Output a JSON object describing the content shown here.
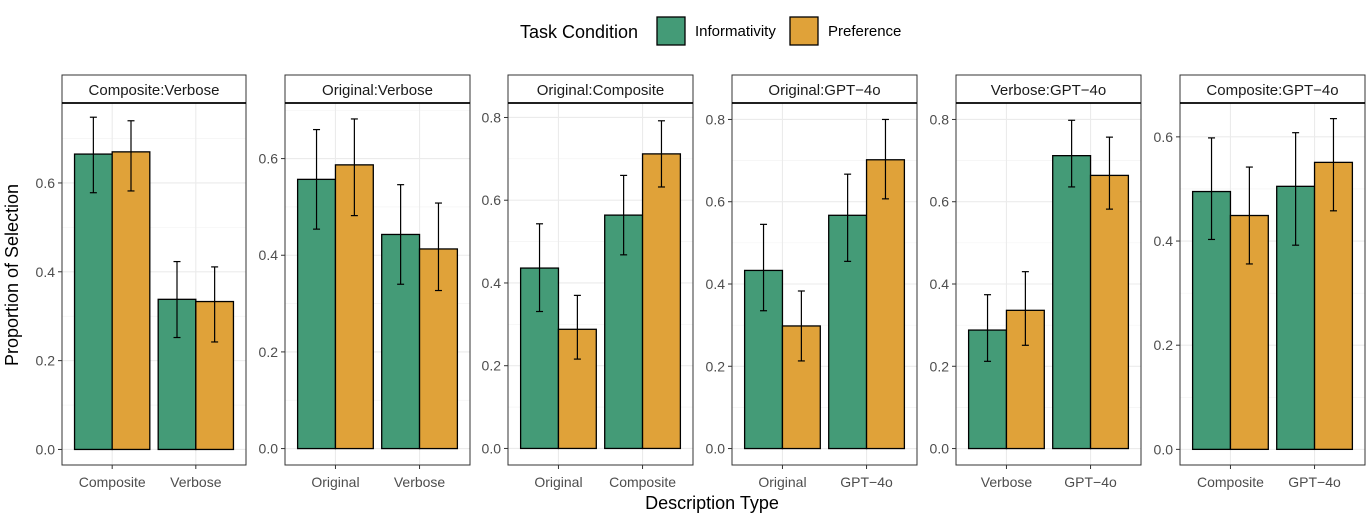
{
  "chart_data": {
    "type": "bar",
    "xlabel": "Description Type",
    "ylabel": "Proportion of Selection",
    "legend": {
      "title": "Task Condition",
      "position": "top",
      "entries": [
        {
          "name": "Informativity",
          "color": "#449B77"
        },
        {
          "name": "Preference",
          "color": "#E0A239"
        }
      ]
    },
    "panels": [
      {
        "title": "Composite:Verbose",
        "categories": [
          "Composite",
          "Verbose"
        ],
        "yticks": [
          0.0,
          0.2,
          0.4,
          0.6
        ],
        "yrange": [
          -0.035,
          0.78
        ],
        "series": [
          {
            "name": "Informativity",
            "values": [
              0.665,
              0.338
            ],
            "error_low": [
              0.578,
              0.252
            ],
            "error_high": [
              0.748,
              0.423
            ]
          },
          {
            "name": "Preference",
            "values": [
              0.67,
              0.333
            ],
            "error_low": [
              0.582,
              0.242
            ],
            "error_high": [
              0.74,
              0.411
            ]
          }
        ]
      },
      {
        "title": "Original:Verbose",
        "categories": [
          "Original",
          "Verbose"
        ],
        "yticks": [
          0.0,
          0.2,
          0.4,
          0.6
        ],
        "yrange": [
          -0.034,
          0.715
        ],
        "series": [
          {
            "name": "Informativity",
            "values": [
              0.557,
              0.443
            ],
            "error_low": [
              0.454,
              0.34
            ],
            "error_high": [
              0.66,
              0.546
            ]
          },
          {
            "name": "Preference",
            "values": [
              0.587,
              0.413
            ],
            "error_low": [
              0.482,
              0.327
            ],
            "error_high": [
              0.682,
              0.508
            ]
          }
        ]
      },
      {
        "title": "Original:Composite",
        "categories": [
          "Original",
          "Composite"
        ],
        "yticks": [
          0.0,
          0.2,
          0.4,
          0.6,
          0.8
        ],
        "yrange": [
          -0.04,
          0.835
        ],
        "series": [
          {
            "name": "Informativity",
            "values": [
              0.436,
              0.564
            ],
            "error_low": [
              0.331,
              0.468
            ],
            "error_high": [
              0.543,
              0.66
            ]
          },
          {
            "name": "Preference",
            "values": [
              0.288,
              0.712
            ],
            "error_low": [
              0.216,
              0.632
            ],
            "error_high": [
              0.37,
              0.792
            ]
          }
        ]
      },
      {
        "title": "Original:GPT−4o",
        "categories": [
          "Original",
          "GPT−4o"
        ],
        "yticks": [
          0.0,
          0.2,
          0.4,
          0.6,
          0.8
        ],
        "yrange": [
          -0.04,
          0.84
        ],
        "series": [
          {
            "name": "Informativity",
            "values": [
              0.433,
              0.567
            ],
            "error_low": [
              0.335,
              0.455
            ],
            "error_high": [
              0.545,
              0.667
            ]
          },
          {
            "name": "Preference",
            "values": [
              0.298,
              0.702
            ],
            "error_low": [
              0.213,
              0.607
            ],
            "error_high": [
              0.383,
              0.8
            ]
          }
        ]
      },
      {
        "title": "Verbose:GPT−4o",
        "categories": [
          "Verbose",
          "GPT−4o"
        ],
        "yticks": [
          0.0,
          0.2,
          0.4,
          0.6,
          0.8
        ],
        "yrange": [
          -0.04,
          0.84
        ],
        "series": [
          {
            "name": "Informativity",
            "values": [
              0.288,
              0.712
            ],
            "error_low": [
              0.212,
              0.636
            ],
            "error_high": [
              0.374,
              0.798
            ]
          },
          {
            "name": "Preference",
            "values": [
              0.336,
              0.664
            ],
            "error_low": [
              0.251,
              0.582
            ],
            "error_high": [
              0.43,
              0.757
            ]
          }
        ]
      },
      {
        "title": "Composite:GPT−4o",
        "categories": [
          "Composite",
          "GPT−4o"
        ],
        "yticks": [
          0.0,
          0.2,
          0.4,
          0.6
        ],
        "yrange": [
          -0.03,
          0.665
        ],
        "series": [
          {
            "name": "Informativity",
            "values": [
              0.495,
              0.505
            ],
            "error_low": [
              0.403,
              0.392
            ],
            "error_high": [
              0.598,
              0.608
            ]
          },
          {
            "name": "Preference",
            "values": [
              0.449,
              0.551
            ],
            "error_low": [
              0.356,
              0.458
            ],
            "error_high": [
              0.542,
              0.635
            ]
          }
        ]
      }
    ]
  }
}
